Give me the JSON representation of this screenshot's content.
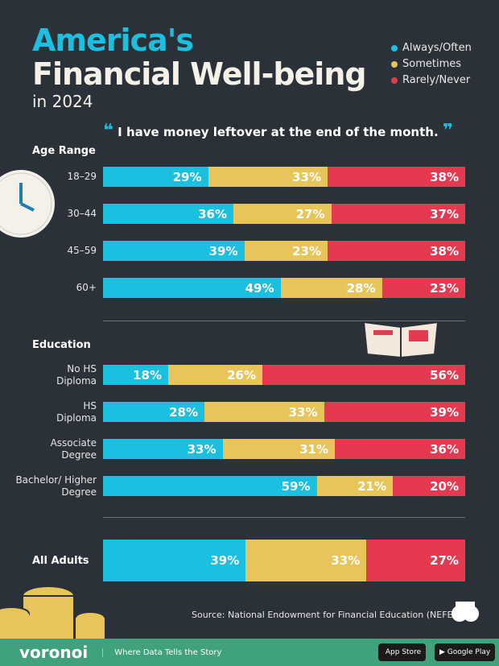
{
  "chart_data": {
    "type": "bar",
    "orientation": "horizontal-stacked",
    "title": "America's Financial Well-being",
    "title_line1": "America's",
    "title_line2": "Financial Well-being",
    "subtitle": "in 2024",
    "statement": "I have money leftover at the end of the month.",
    "legend": [
      "Always/Often",
      "Sometimes",
      "Rarely/Never"
    ],
    "legend_position": "top-right",
    "colors": {
      "Always/Often": "#1bbfe0",
      "Sometimes": "#e8c55a",
      "Rarely/Never": "#e5394f"
    },
    "groups": [
      {
        "name": "Age Range",
        "categories": [
          "18–29",
          "30–44",
          "45–59",
          "60+"
        ],
        "series": [
          {
            "name": "Always/Often",
            "values": [
              29,
              36,
              39,
              49
            ]
          },
          {
            "name": "Sometimes",
            "values": [
              33,
              27,
              23,
              28
            ]
          },
          {
            "name": "Rarely/Never",
            "values": [
              38,
              37,
              38,
              23
            ]
          }
        ]
      },
      {
        "name": "Education",
        "categories": [
          "No HS Diploma",
          "HS Diploma",
          "Associate Degree",
          "Bachelor/ Higher Degree"
        ],
        "series": [
          {
            "name": "Always/Often",
            "values": [
              18,
              28,
              33,
              59
            ]
          },
          {
            "name": "Sometimes",
            "values": [
              26,
              33,
              31,
              21
            ]
          },
          {
            "name": "Rarely/Never",
            "values": [
              56,
              39,
              36,
              20
            ]
          }
        ]
      },
      {
        "name": "",
        "categories": [
          "All Adults"
        ],
        "series": [
          {
            "name": "Always/Often",
            "values": [
              39
            ]
          },
          {
            "name": "Sometimes",
            "values": [
              33
            ]
          },
          {
            "name": "Rarely/Never",
            "values": [
              27
            ]
          }
        ]
      }
    ],
    "unit": "%"
  },
  "source": "Source: National Endowment for Financial Education (NEFE)",
  "footer": {
    "brand": "voronoi",
    "tagline": "Where Data Tells the Story",
    "app_store": "App Store",
    "google_play": "Google Play"
  }
}
